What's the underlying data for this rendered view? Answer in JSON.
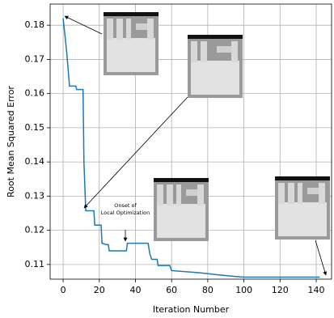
{
  "chart_data": {
    "type": "line",
    "xlabel": "Iteration Number",
    "ylabel": "Root Mean Squared Error",
    "annotation": [
      "Onset of",
      "Local Optimization"
    ],
    "xlim": [
      -7.2,
      148.5
    ],
    "ylim": [
      0.1057,
      0.1862
    ],
    "xticks": [
      0,
      20,
      40,
      60,
      80,
      100,
      120,
      140
    ],
    "yticks": [
      0.11,
      0.12,
      0.13,
      0.14,
      0.15,
      0.16,
      0.17,
      0.18
    ],
    "grid": true,
    "series": [
      {
        "color": "#1f77b4",
        "x": [
          0,
          2,
          3.5,
          7,
          7.5,
          11,
          11.5,
          12.5,
          17,
          17.5,
          21,
          21.5,
          24,
          25,
          25.5,
          35,
          35.5,
          47,
          48,
          49,
          52,
          52.5,
          59,
          60,
          75,
          85,
          95,
          100,
          142
        ],
        "values": [
          0.182,
          0.172,
          0.1622,
          0.1622,
          0.1612,
          0.1612,
          0.14,
          0.1257,
          0.1257,
          0.1215,
          0.1215,
          0.1162,
          0.1158,
          0.1158,
          0.114,
          0.114,
          0.1162,
          0.1162,
          0.113,
          0.1115,
          0.1115,
          0.1097,
          0.1097,
          0.1082,
          0.1076,
          0.107,
          0.1065,
          0.1063,
          0.1063
        ]
      }
    ]
  }
}
